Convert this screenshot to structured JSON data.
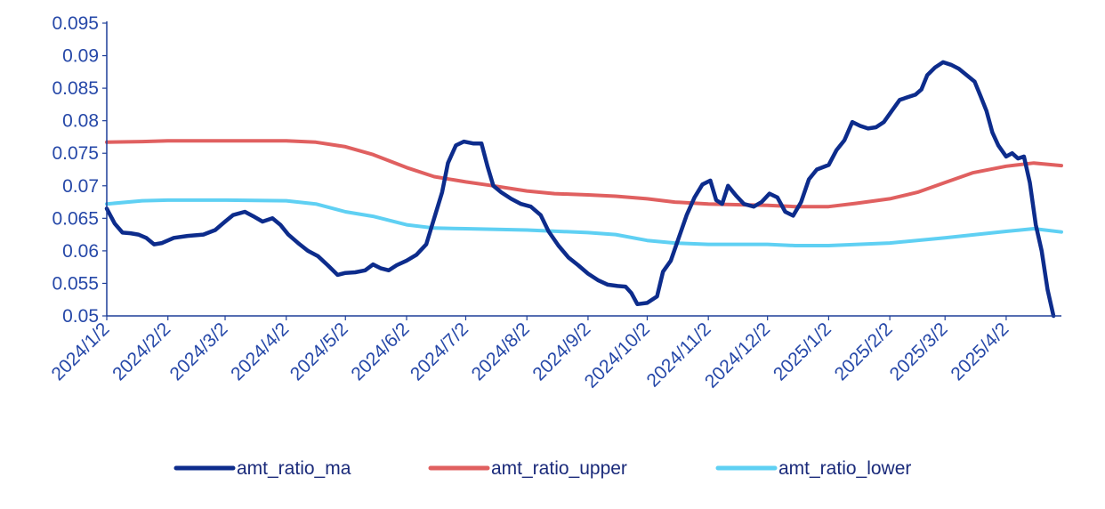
{
  "chart_data": {
    "type": "line",
    "title": "",
    "xlabel": "",
    "ylabel": "",
    "ylim": [
      0.05,
      0.095
    ],
    "yticks": [
      0.05,
      0.055,
      0.06,
      0.065,
      0.07,
      0.075,
      0.08,
      0.085,
      0.09,
      0.095
    ],
    "ytick_labels": [
      "0.05",
      "0.055",
      "0.06",
      "0.065",
      "0.07",
      "0.075",
      "0.08",
      "0.085",
      "0.09",
      "0.095"
    ],
    "xlim": [
      "2024-01-02",
      "2025-04-30"
    ],
    "xticks": [
      "2024-01-02",
      "2024-02-02",
      "2024-03-02",
      "2024-04-02",
      "2024-05-02",
      "2024-06-02",
      "2024-07-02",
      "2024-08-02",
      "2024-09-02",
      "2024-10-02",
      "2024-11-02",
      "2024-12-02",
      "2025-01-02",
      "2025-02-02",
      "2025-03-02",
      "2025-04-02"
    ],
    "xtick_labels": [
      "2024/1/2",
      "2024/2/2",
      "2024/3/2",
      "2024/4/2",
      "2024/5/2",
      "2024/6/2",
      "2024/7/2",
      "2024/8/2",
      "2024/9/2",
      "2024/10/2",
      "2024/11/2",
      "2024/12/2",
      "2025/1/2",
      "2025/2/2",
      "2025/3/2",
      "2025/4/2"
    ],
    "grid": false,
    "legend_position": "bottom",
    "series": [
      {
        "name": "amt_ratio_ma",
        "color": "#0d2c8c",
        "points": [
          [
            "2024-01-02",
            0.0665
          ],
          [
            "2024-01-06",
            0.0642
          ],
          [
            "2024-01-10",
            0.0628
          ],
          [
            "2024-01-14",
            0.0627
          ],
          [
            "2024-01-18",
            0.0625
          ],
          [
            "2024-01-22",
            0.062
          ],
          [
            "2024-01-26",
            0.061
          ],
          [
            "2024-01-30",
            0.0612
          ],
          [
            "2024-02-05",
            0.062
          ],
          [
            "2024-02-12",
            0.0623
          ],
          [
            "2024-02-20",
            0.0625
          ],
          [
            "2024-02-26",
            0.0632
          ],
          [
            "2024-03-02",
            0.0645
          ],
          [
            "2024-03-06",
            0.0655
          ],
          [
            "2024-03-12",
            0.066
          ],
          [
            "2024-03-17",
            0.0652
          ],
          [
            "2024-03-21",
            0.0645
          ],
          [
            "2024-03-26",
            0.065
          ],
          [
            "2024-03-30",
            0.064
          ],
          [
            "2024-04-03",
            0.0625
          ],
          [
            "2024-04-08",
            0.0612
          ],
          [
            "2024-04-13",
            0.06
          ],
          [
            "2024-04-18",
            0.0592
          ],
          [
            "2024-04-23",
            0.0578
          ],
          [
            "2024-04-28",
            0.0563
          ],
          [
            "2024-05-02",
            0.0566
          ],
          [
            "2024-05-07",
            0.0567
          ],
          [
            "2024-05-12",
            0.057
          ],
          [
            "2024-05-16",
            0.0579
          ],
          [
            "2024-05-20",
            0.0573
          ],
          [
            "2024-05-24",
            0.057
          ],
          [
            "2024-05-28",
            0.0578
          ],
          [
            "2024-06-02",
            0.0585
          ],
          [
            "2024-06-07",
            0.0594
          ],
          [
            "2024-06-12",
            0.061
          ],
          [
            "2024-06-16",
            0.065
          ],
          [
            "2024-06-20",
            0.069
          ],
          [
            "2024-06-23",
            0.0735
          ],
          [
            "2024-06-27",
            0.0762
          ],
          [
            "2024-07-01",
            0.0768
          ],
          [
            "2024-07-06",
            0.0765
          ],
          [
            "2024-07-10",
            0.0765
          ],
          [
            "2024-07-13",
            0.073
          ],
          [
            "2024-07-16",
            0.07
          ],
          [
            "2024-07-20",
            0.069
          ],
          [
            "2024-07-25",
            0.068
          ],
          [
            "2024-07-30",
            0.0672
          ],
          [
            "2024-08-04",
            0.0668
          ],
          [
            "2024-08-09",
            0.0655
          ],
          [
            "2024-08-13",
            0.063
          ],
          [
            "2024-08-18",
            0.0608
          ],
          [
            "2024-08-23",
            0.059
          ],
          [
            "2024-08-28",
            0.0578
          ],
          [
            "2024-09-02",
            0.0565
          ],
          [
            "2024-09-07",
            0.0555
          ],
          [
            "2024-09-12",
            0.0548
          ],
          [
            "2024-09-17",
            0.0546
          ],
          [
            "2024-09-21",
            0.0545
          ],
          [
            "2024-09-24",
            0.0535
          ],
          [
            "2024-09-27",
            0.0518
          ],
          [
            "2024-10-02",
            0.052
          ],
          [
            "2024-10-07",
            0.053
          ],
          [
            "2024-10-10",
            0.0568
          ],
          [
            "2024-10-14",
            0.0585
          ],
          [
            "2024-10-18",
            0.062
          ],
          [
            "2024-10-22",
            0.0655
          ],
          [
            "2024-10-26",
            0.0682
          ],
          [
            "2024-10-30",
            0.0702
          ],
          [
            "2024-11-03",
            0.0708
          ],
          [
            "2024-11-06",
            0.0678
          ],
          [
            "2024-11-09",
            0.0672
          ],
          [
            "2024-11-12",
            0.07
          ],
          [
            "2024-11-16",
            0.0685
          ],
          [
            "2024-11-20",
            0.0672
          ],
          [
            "2024-11-25",
            0.0668
          ],
          [
            "2024-11-29",
            0.0675
          ],
          [
            "2024-12-03",
            0.0688
          ],
          [
            "2024-12-07",
            0.0682
          ],
          [
            "2024-12-11",
            0.066
          ],
          [
            "2024-12-15",
            0.0654
          ],
          [
            "2024-12-19",
            0.0675
          ],
          [
            "2024-12-23",
            0.071
          ],
          [
            "2024-12-27",
            0.0725
          ],
          [
            "2025-01-02",
            0.0732
          ],
          [
            "2025-01-06",
            0.0755
          ],
          [
            "2025-01-10",
            0.077
          ],
          [
            "2025-01-14",
            0.0798
          ],
          [
            "2025-01-18",
            0.0792
          ],
          [
            "2025-01-22",
            0.0788
          ],
          [
            "2025-01-26",
            0.079
          ],
          [
            "2025-01-30",
            0.0798
          ],
          [
            "2025-02-03",
            0.0815
          ],
          [
            "2025-02-07",
            0.0832
          ],
          [
            "2025-02-11",
            0.0836
          ],
          [
            "2025-02-15",
            0.084
          ],
          [
            "2025-02-18",
            0.0848
          ],
          [
            "2025-02-21",
            0.087
          ],
          [
            "2025-02-25",
            0.0882
          ],
          [
            "2025-03-01",
            0.089
          ],
          [
            "2025-03-05",
            0.0886
          ],
          [
            "2025-03-09",
            0.088
          ],
          [
            "2025-03-13",
            0.087
          ],
          [
            "2025-03-17",
            0.086
          ],
          [
            "2025-03-20",
            0.0838
          ],
          [
            "2025-03-23",
            0.0815
          ],
          [
            "2025-03-26",
            0.0782
          ],
          [
            "2025-03-29",
            0.0762
          ],
          [
            "2025-04-02",
            0.0745
          ],
          [
            "2025-04-05",
            0.075
          ],
          [
            "2025-04-08",
            0.0742
          ],
          [
            "2025-04-11",
            0.0745
          ],
          [
            "2025-04-14",
            0.0705
          ],
          [
            "2025-04-17",
            0.064
          ],
          [
            "2025-04-20",
            0.06
          ],
          [
            "2025-04-23",
            0.054
          ],
          [
            "2025-04-26",
            0.05
          ]
        ]
      },
      {
        "name": "amt_ratio_upper",
        "color": "#e06060",
        "points": [
          [
            "2024-01-02",
            0.0767
          ],
          [
            "2024-01-20",
            0.0768
          ],
          [
            "2024-02-02",
            0.0769
          ],
          [
            "2024-03-02",
            0.0769
          ],
          [
            "2024-04-02",
            0.0769
          ],
          [
            "2024-04-17",
            0.0767
          ],
          [
            "2024-05-02",
            0.076
          ],
          [
            "2024-05-16",
            0.0748
          ],
          [
            "2024-06-02",
            0.0728
          ],
          [
            "2024-06-16",
            0.0714
          ],
          [
            "2024-07-02",
            0.0706
          ],
          [
            "2024-07-16",
            0.07
          ],
          [
            "2024-08-02",
            0.0692
          ],
          [
            "2024-08-16",
            0.0688
          ],
          [
            "2024-09-02",
            0.0686
          ],
          [
            "2024-09-16",
            0.0684
          ],
          [
            "2024-10-02",
            0.068
          ],
          [
            "2024-10-16",
            0.0675
          ],
          [
            "2024-11-02",
            0.0672
          ],
          [
            "2024-11-16",
            0.0671
          ],
          [
            "2024-12-02",
            0.067
          ],
          [
            "2024-12-16",
            0.0668
          ],
          [
            "2025-01-02",
            0.0668
          ],
          [
            "2025-01-16",
            0.0673
          ],
          [
            "2025-02-02",
            0.068
          ],
          [
            "2025-02-16",
            0.069
          ],
          [
            "2025-03-02",
            0.0705
          ],
          [
            "2025-03-16",
            0.072
          ],
          [
            "2025-04-02",
            0.073
          ],
          [
            "2025-04-16",
            0.0735
          ],
          [
            "2025-04-30",
            0.0731
          ]
        ]
      },
      {
        "name": "amt_ratio_lower",
        "color": "#5fd0f3",
        "points": [
          [
            "2024-01-02",
            0.0672
          ],
          [
            "2024-01-20",
            0.0677
          ],
          [
            "2024-02-02",
            0.0678
          ],
          [
            "2024-03-02",
            0.0678
          ],
          [
            "2024-04-02",
            0.0677
          ],
          [
            "2024-04-17",
            0.0672
          ],
          [
            "2024-05-02",
            0.066
          ],
          [
            "2024-05-16",
            0.0653
          ],
          [
            "2024-06-02",
            0.064
          ],
          [
            "2024-06-16",
            0.0635
          ],
          [
            "2024-07-02",
            0.0634
          ],
          [
            "2024-08-02",
            0.0632
          ],
          [
            "2024-09-02",
            0.0628
          ],
          [
            "2024-09-16",
            0.0625
          ],
          [
            "2024-10-02",
            0.0616
          ],
          [
            "2024-10-16",
            0.0612
          ],
          [
            "2024-11-02",
            0.061
          ],
          [
            "2024-12-02",
            0.061
          ],
          [
            "2024-12-16",
            0.0608
          ],
          [
            "2025-01-02",
            0.0608
          ],
          [
            "2025-02-02",
            0.0612
          ],
          [
            "2025-03-02",
            0.062
          ],
          [
            "2025-04-02",
            0.063
          ],
          [
            "2025-04-16",
            0.0634
          ],
          [
            "2025-04-30",
            0.0629
          ]
        ]
      }
    ]
  }
}
